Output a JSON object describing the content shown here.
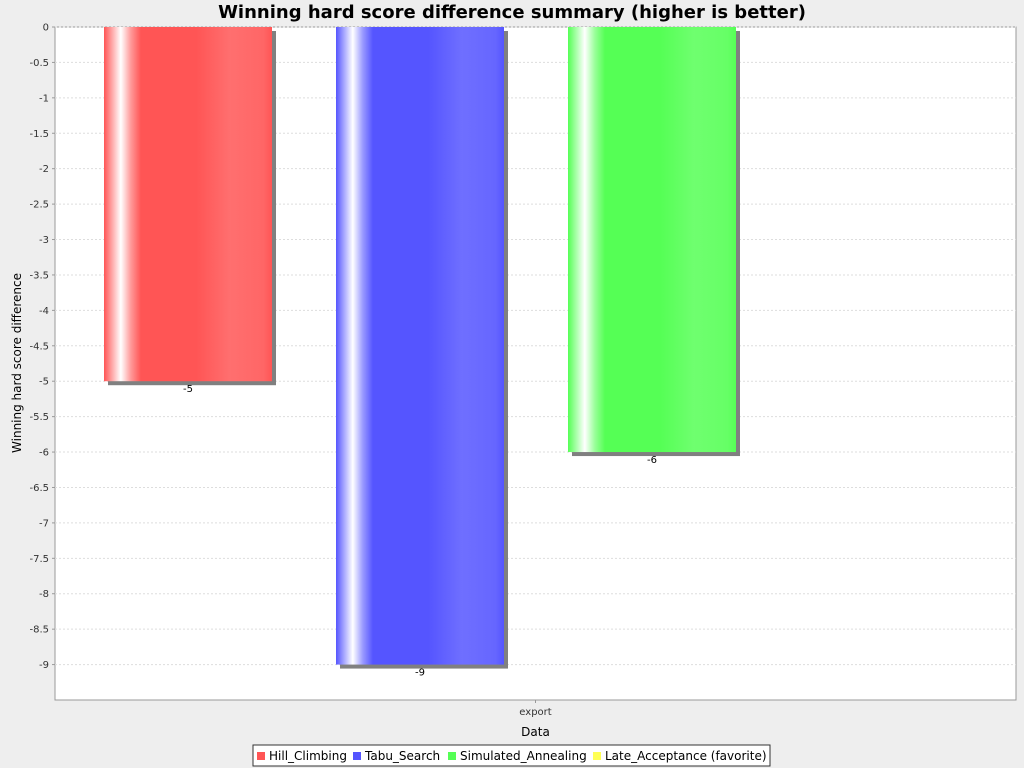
{
  "chart_data": {
    "type": "bar",
    "title": "Winning hard score difference summary (higher is better)",
    "xlabel": "Data",
    "ylabel": "Winning hard score difference",
    "categories": [
      "export"
    ],
    "ylim": [
      -9.5,
      0
    ],
    "yticks": [
      0,
      -0.5,
      -1,
      -1.5,
      -2,
      -2.5,
      -3,
      -3.5,
      -4,
      -4.5,
      -5,
      -5.5,
      -6,
      -6.5,
      -7,
      -7.5,
      -8,
      -8.5,
      -9
    ],
    "grid": true,
    "legend_position": "bottom",
    "series": [
      {
        "name": "Hill_Climbing",
        "values": [
          -5
        ],
        "color": "#ff5555"
      },
      {
        "name": "Tabu_Search",
        "values": [
          -9
        ],
        "color": "#5555ff"
      },
      {
        "name": "Simulated_Annealing",
        "values": [
          -6
        ],
        "color": "#55ff55"
      },
      {
        "name": "Late_Acceptance (favorite)",
        "values": [
          null
        ],
        "color": "#ffff55"
      }
    ]
  }
}
